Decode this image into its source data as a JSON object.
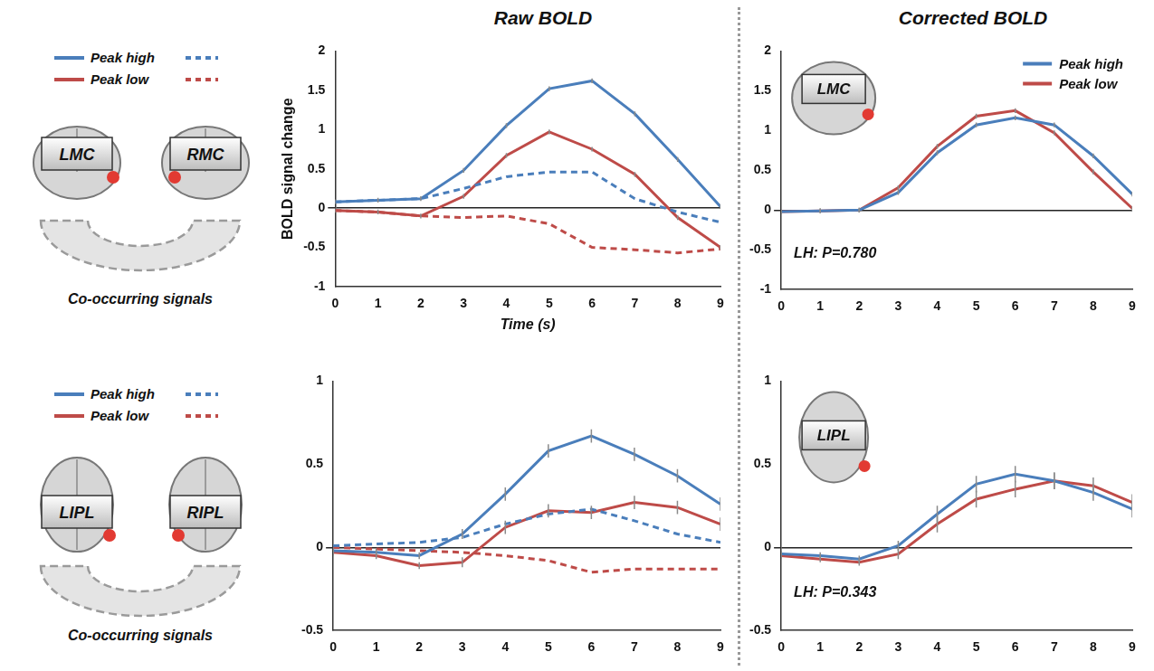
{
  "columns": [
    "Raw BOLD",
    "Corrected BOLD"
  ],
  "diagrams": [
    {
      "regions": [
        "LMC",
        "RMC"
      ],
      "caption": "Co-occurring signals"
    },
    {
      "regions": [
        "LIPL",
        "RIPL"
      ],
      "caption": "Co-occurring signals"
    }
  ],
  "chart_data": [
    {
      "type": "line",
      "legend": "left",
      "x": [
        0,
        1,
        2,
        3,
        4,
        5,
        6,
        7,
        8,
        9
      ],
      "xlim": [
        0,
        9
      ],
      "xticks": [
        0,
        1,
        2,
        3,
        4,
        5,
        6,
        7,
        8,
        9
      ],
      "ylim": [
        -1,
        2
      ],
      "yticks": [
        -1,
        -0.5,
        0,
        0.5,
        1,
        1.5,
        2
      ],
      "x_label": "Time (s)",
      "y_label": "BOLD signal change",
      "series": [
        {
          "name": "Peak high",
          "color": "#4a7ebb",
          "line_style": "solid",
          "values": [
            0.08,
            0.1,
            0.12,
            0.48,
            1.05,
            1.52,
            1.62,
            1.2,
            0.62,
            0.02
          ],
          "errors": [
            0.03,
            0.03,
            0.03,
            0.03,
            0.03,
            0.03,
            0.03,
            0.03,
            0.03,
            0.03
          ]
        },
        {
          "name": "Peak high",
          "color": "#4a7ebb",
          "line_style": "dashed",
          "values": [
            0.08,
            0.1,
            0.12,
            0.25,
            0.4,
            0.46,
            0.46,
            0.12,
            -0.05,
            -0.18
          ]
        },
        {
          "name": "Peak low",
          "color": "#be4b48",
          "line_style": "solid",
          "values": [
            -0.03,
            -0.05,
            -0.1,
            0.15,
            0.67,
            0.97,
            0.75,
            0.43,
            -0.12,
            -0.5
          ],
          "errors": [
            0.03,
            0.03,
            0.03,
            0.03,
            0.03,
            0.03,
            0.03,
            0.03,
            0.03,
            0.03
          ]
        },
        {
          "name": "Peak low",
          "color": "#be4b48",
          "line_style": "dashed",
          "values": [
            -0.03,
            -0.05,
            -0.1,
            -0.12,
            -0.1,
            -0.2,
            -0.5,
            -0.53,
            -0.57,
            -0.52
          ]
        }
      ]
    },
    {
      "type": "line",
      "legend": "upper right",
      "inset": "LMC",
      "annotations": [
        "LH: P=0.780"
      ],
      "x": [
        0,
        1,
        2,
        3,
        4,
        5,
        6,
        7,
        8,
        9
      ],
      "xlim": [
        0,
        9
      ],
      "xticks": [
        0,
        1,
        2,
        3,
        4,
        5,
        6,
        7,
        8,
        9
      ],
      "ylim": [
        -1,
        2
      ],
      "yticks": [
        -1,
        -0.5,
        0,
        0.5,
        1,
        1.5,
        2
      ],
      "series": [
        {
          "name": "Peak high",
          "color": "#4a7ebb",
          "line_style": "solid",
          "values": [
            -0.02,
            -0.01,
            0.0,
            0.22,
            0.72,
            1.07,
            1.16,
            1.07,
            0.68,
            0.2
          ],
          "errors": [
            0.03,
            0.03,
            0.03,
            0.03,
            0.03,
            0.03,
            0.03,
            0.03,
            0.03,
            0.03
          ]
        },
        {
          "name": "Peak low",
          "color": "#be4b48",
          "line_style": "solid",
          "values": [
            -0.02,
            -0.01,
            0.0,
            0.28,
            0.8,
            1.18,
            1.25,
            0.97,
            0.48,
            0.02
          ],
          "errors": [
            0.03,
            0.03,
            0.03,
            0.03,
            0.03,
            0.03,
            0.03,
            0.03,
            0.03,
            0.03
          ]
        }
      ]
    },
    {
      "type": "line",
      "legend": "left",
      "x": [
        0,
        1,
        2,
        3,
        4,
        5,
        6,
        7,
        8,
        9
      ],
      "xlim": [
        0,
        9
      ],
      "xticks": [
        0,
        1,
        2,
        3,
        4,
        5,
        6,
        7,
        8,
        9
      ],
      "ylim": [
        -0.5,
        1
      ],
      "yticks": [
        -0.5,
        0,
        0.5,
        1
      ],
      "series": [
        {
          "name": "Peak high",
          "color": "#4a7ebb",
          "line_style": "solid",
          "values": [
            -0.02,
            -0.03,
            -0.05,
            0.08,
            0.32,
            0.58,
            0.67,
            0.56,
            0.43,
            0.26
          ],
          "errors": [
            0.02,
            0.02,
            0.02,
            0.03,
            0.04,
            0.04,
            0.04,
            0.04,
            0.04,
            0.04
          ]
        },
        {
          "name": "Peak high",
          "color": "#4a7ebb",
          "line_style": "dashed",
          "values": [
            0.01,
            0.02,
            0.03,
            0.06,
            0.14,
            0.2,
            0.23,
            0.16,
            0.08,
            0.03
          ]
        },
        {
          "name": "Peak low",
          "color": "#be4b48",
          "line_style": "solid",
          "values": [
            -0.03,
            -0.05,
            -0.11,
            -0.09,
            0.12,
            0.22,
            0.21,
            0.27,
            0.24,
            0.14
          ],
          "errors": [
            0.02,
            0.02,
            0.02,
            0.03,
            0.04,
            0.04,
            0.04,
            0.04,
            0.04,
            0.04
          ]
        },
        {
          "name": "Peak low",
          "color": "#be4b48",
          "line_style": "dashed",
          "values": [
            0.0,
            -0.01,
            -0.02,
            -0.03,
            -0.05,
            -0.08,
            -0.15,
            -0.13,
            -0.13,
            -0.13
          ]
        }
      ]
    },
    {
      "type": "line",
      "inset": "LIPL",
      "annotations": [
        "LH: P=0.343"
      ],
      "x": [
        0,
        1,
        2,
        3,
        4,
        5,
        6,
        7,
        8,
        9
      ],
      "xlim": [
        0,
        9
      ],
      "xticks": [
        0,
        1,
        2,
        3,
        4,
        5,
        6,
        7,
        8,
        9
      ],
      "ylim": [
        -0.5,
        1
      ],
      "yticks": [
        -0.5,
        0,
        0.5,
        1
      ],
      "series": [
        {
          "name": "Peak high",
          "color": "#4a7ebb",
          "line_style": "solid",
          "values": [
            -0.04,
            -0.05,
            -0.07,
            0.01,
            0.2,
            0.38,
            0.44,
            0.4,
            0.33,
            0.23
          ],
          "errors": [
            0.02,
            0.02,
            0.02,
            0.03,
            0.05,
            0.05,
            0.05,
            0.05,
            0.05,
            0.05
          ]
        },
        {
          "name": "Peak low",
          "color": "#be4b48",
          "line_style": "solid",
          "values": [
            -0.05,
            -0.07,
            -0.09,
            -0.04,
            0.14,
            0.29,
            0.35,
            0.4,
            0.37,
            0.27
          ],
          "errors": [
            0.02,
            0.02,
            0.02,
            0.03,
            0.05,
            0.05,
            0.05,
            0.05,
            0.05,
            0.05
          ]
        }
      ]
    }
  ]
}
